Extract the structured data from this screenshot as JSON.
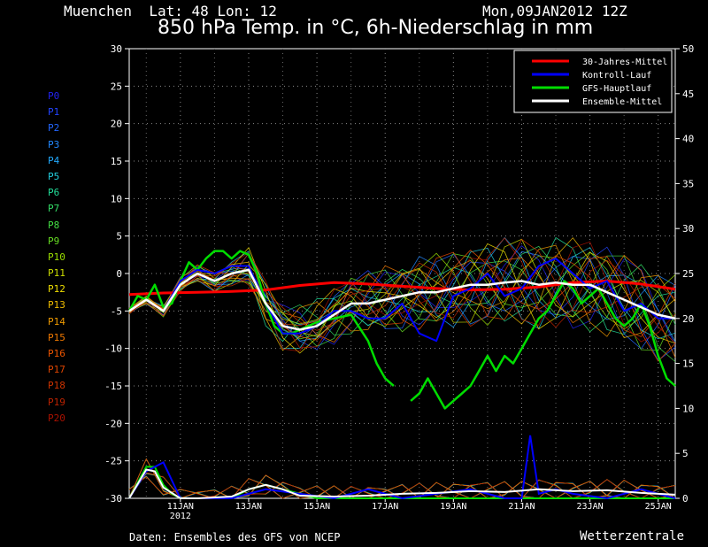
{
  "header": {
    "location": "Muenchen  Lat: 48 Lon: 12",
    "datetime": "Mon,09JAN2012 12Z",
    "title": "850 hPa Temp. in °C, 6h-Niederschlag in mm"
  },
  "footer": {
    "source": "Daten: Ensembles des GFS von NCEP",
    "brand": "Wetterzentrale"
  },
  "members": [
    {
      "label": "P0",
      "color": "#2222ee"
    },
    {
      "label": "P1",
      "color": "#2244ff"
    },
    {
      "label": "P2",
      "color": "#2266ff"
    },
    {
      "label": "P3",
      "color": "#2288ff"
    },
    {
      "label": "P4",
      "color": "#22aaff"
    },
    {
      "label": "P5",
      "color": "#22ccdd"
    },
    {
      "label": "P6",
      "color": "#22dd99"
    },
    {
      "label": "P7",
      "color": "#33dd66"
    },
    {
      "label": "P8",
      "color": "#44dd44"
    },
    {
      "label": "P9",
      "color": "#66dd22"
    },
    {
      "label": "P10",
      "color": "#99dd00"
    },
    {
      "label": "P11",
      "color": "#ccdd00"
    },
    {
      "label": "P12",
      "color": "#eedd00"
    },
    {
      "label": "P13",
      "color": "#eebb00"
    },
    {
      "label": "P14",
      "color": "#ee9900"
    },
    {
      "label": "P15",
      "color": "#ee7700"
    },
    {
      "label": "P16",
      "color": "#ee5500"
    },
    {
      "label": "P17",
      "color": "#dd4400"
    },
    {
      "label": "P18",
      "color": "#cc3300"
    },
    {
      "label": "P19",
      "color": "#bb2200"
    },
    {
      "label": "P20",
      "color": "#aa1100"
    }
  ],
  "chart_data": {
    "type": "line",
    "x_unit": "days from 09JAN2012 12Z",
    "xlim": [
      0,
      16
    ],
    "ylim_left": [
      -30,
      30
    ],
    "yticks_left": [
      30,
      25,
      20,
      15,
      10,
      5,
      0,
      -5,
      -10,
      -15,
      -20,
      -25,
      -30
    ],
    "ylim_right": [
      0,
      50
    ],
    "yticks_right": [
      50,
      45,
      40,
      35,
      30,
      25,
      20,
      15,
      10,
      5,
      0
    ],
    "xticks": [
      {
        "x": 1.5,
        "label": "11JAN",
        "sub": "2012"
      },
      {
        "x": 3.5,
        "label": "13JAN"
      },
      {
        "x": 5.5,
        "label": "15JAN"
      },
      {
        "x": 7.5,
        "label": "17JAN"
      },
      {
        "x": 9.5,
        "label": "19JAN"
      },
      {
        "x": 11.5,
        "label": "21JAN"
      },
      {
        "x": 13.5,
        "label": "23JAN"
      },
      {
        "x": 15.5,
        "label": "25JAN"
      }
    ],
    "grid": true,
    "legend_position": "top-right",
    "legend": [
      {
        "name": "30-Jahres-Mittel",
        "color": "#ff0000"
      },
      {
        "name": "Kontroll-Lauf",
        "color": "#0000ff"
      },
      {
        "name": "GFS-Hauptlauf",
        "color": "#00dd00"
      },
      {
        "name": "Ensemble-Mittel",
        "color": "#ffffff"
      }
    ],
    "series": [
      {
        "name": "30-Jahres-Mittel",
        "color": "#ff0000",
        "x": [
          0,
          1,
          2,
          3,
          4,
          5,
          6,
          7,
          8,
          9,
          10,
          11,
          12,
          13,
          14,
          15,
          16
        ],
        "y": [
          -2.8,
          -2.6,
          -2.5,
          -2.4,
          -2.2,
          -1.6,
          -1.2,
          -1.4,
          -1.7,
          -2.0,
          -2.2,
          -2.1,
          -1.8,
          -1.2,
          -1.0,
          -1.4,
          -2.1
        ]
      },
      {
        "name": "GFS-Hauptlauf",
        "color": "#00dd00",
        "x": [
          0,
          0.25,
          0.5,
          0.75,
          1,
          1.25,
          1.5,
          1.75,
          2,
          2.25,
          2.5,
          2.75,
          3,
          3.25,
          3.5,
          3.75,
          4,
          4.25,
          4.5,
          4.75,
          5,
          5.5,
          6,
          6.5,
          7,
          7.25,
          7.5,
          7.75,
          8,
          8.25,
          8.5,
          8.75,
          9,
          9.25,
          9.5,
          9.75,
          10,
          10.25,
          10.5,
          10.75,
          11,
          11.25,
          11.5,
          11.75,
          12,
          12.25,
          12.5,
          12.75,
          13,
          13.25,
          13.5,
          13.75,
          14,
          14.25,
          14.5,
          14.75,
          15,
          15.25,
          15.5,
          15.75,
          16
        ],
        "y": [
          -5,
          -3,
          -3.5,
          -1.5,
          -4.5,
          -4,
          -1,
          1.5,
          0.5,
          2,
          3,
          3,
          2,
          3,
          2.5,
          0,
          -4,
          -7,
          -8,
          -8,
          -7.5,
          -6.5,
          -6,
          -5.5,
          -9,
          -12,
          -14,
          -15,
          null,
          -17,
          -16,
          -14,
          -16,
          -18,
          -17,
          -16,
          -15,
          -13,
          -11,
          -13,
          -11,
          -12,
          -10,
          -8,
          -6,
          -5,
          -3,
          -1,
          -2,
          -4,
          -3,
          -2,
          -4,
          -6,
          -7,
          -6,
          -4,
          -7,
          -11,
          -14,
          -15
        ]
      },
      {
        "name": "Kontroll-Lauf",
        "color": "#0000ff",
        "x": [
          0,
          0.5,
          1,
          1.5,
          2,
          2.5,
          3,
          3.5,
          4,
          4.5,
          5,
          5.5,
          6,
          6.5,
          7,
          7.5,
          8,
          8.5,
          9,
          9.5,
          10,
          10.5,
          11,
          11.5,
          12,
          12.5,
          13,
          13.5,
          14,
          14.5,
          15,
          15.5,
          16
        ],
        "y": [
          -5,
          -3.5,
          -5,
          -1,
          0.5,
          0,
          1,
          1,
          -4,
          -8,
          -8,
          -7,
          -5,
          -5,
          -6,
          -6,
          -4,
          -8,
          -9,
          -3,
          -2,
          0,
          -3,
          -2,
          1,
          2,
          0,
          -2,
          -1,
          -5,
          -4,
          -6,
          -6
        ]
      },
      {
        "name": "Ensemble-Mittel",
        "color": "#ffffff",
        "x": [
          0,
          0.5,
          1,
          1.5,
          2,
          2.5,
          3,
          3.5,
          4,
          4.5,
          5,
          5.5,
          6,
          6.5,
          7,
          7.5,
          8,
          8.5,
          9,
          9.5,
          10,
          10.5,
          11,
          11.5,
          12,
          12.5,
          13,
          13.5,
          14,
          14.5,
          15,
          15.5,
          16
        ],
        "y": [
          -5,
          -3.5,
          -5,
          -1.5,
          0,
          -1,
          0,
          0.5,
          -4,
          -7,
          -7.5,
          -7,
          -5.5,
          -4,
          -4,
          -3.5,
          -3,
          -2.5,
          -2.5,
          -2,
          -1.5,
          -1.5,
          -1.2,
          -1,
          -1.5,
          -1.2,
          -1.5,
          -1.5,
          -2.5,
          -3.5,
          -4.5,
          -5.5,
          -6
        ]
      }
    ],
    "precip_series": [
      {
        "name": "GFS-Hauptlauf",
        "color": "#00dd00",
        "x": [
          0,
          0.5,
          0.75,
          1,
          1.25,
          1.5,
          2,
          2.5,
          3,
          3.5,
          4,
          4.5,
          5,
          5.5,
          6,
          6.5,
          7,
          8,
          9,
          10,
          11,
          12,
          13,
          14,
          15,
          16
        ],
        "y": [
          0,
          3.5,
          3.5,
          1.5,
          0.5,
          0,
          0,
          0,
          0,
          1,
          1.5,
          1,
          0.5,
          0,
          0,
          0,
          0,
          0,
          0,
          0,
          0,
          0,
          0,
          0,
          0,
          0
        ]
      },
      {
        "name": "Kontroll-Lauf",
        "color": "#0000ff",
        "x": [
          0,
          0.5,
          1,
          1.5,
          2,
          3,
          3.5,
          4,
          5,
          6,
          6.5,
          7,
          8,
          9,
          10,
          10.5,
          11,
          11.5,
          11.75,
          12,
          12.5,
          13,
          14,
          15,
          16
        ],
        "y": [
          0,
          3,
          4,
          0,
          0,
          0,
          0.5,
          1,
          0.5,
          0,
          0.5,
          1,
          0,
          0.5,
          1,
          0.5,
          0,
          0,
          7,
          0.5,
          1,
          0.5,
          0,
          1,
          0
        ]
      },
      {
        "name": "Ensemble-Mittel",
        "color": "#ffffff",
        "x": [
          0,
          0.5,
          0.75,
          1,
          1.5,
          2,
          3,
          3.5,
          4,
          4.5,
          5,
          6,
          7,
          8,
          9,
          10,
          11,
          12,
          13,
          14,
          15,
          16
        ],
        "y": [
          0,
          3.2,
          3,
          1.2,
          0,
          0,
          0.2,
          1,
          1.5,
          1,
          0.3,
          0.2,
          0.3,
          0.5,
          0.6,
          0.8,
          0.7,
          1,
          0.8,
          0.9,
          0.6,
          0.4
        ]
      }
    ]
  }
}
